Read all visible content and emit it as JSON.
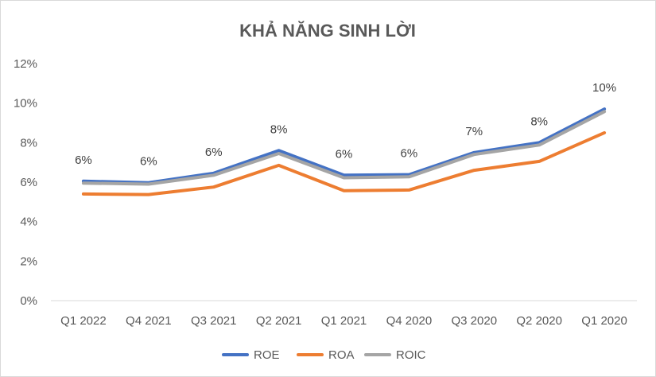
{
  "chart_data": {
    "type": "line",
    "title": "KHẢ NĂNG SINH LỜI",
    "categories": [
      "Q1 2022",
      "Q4 2021",
      "Q3 2021",
      "Q2 2021",
      "Q1 2021",
      "Q4 2020",
      "Q3 2020",
      "Q2 2020",
      "Q1 2020"
    ],
    "series": [
      {
        "name": "ROE",
        "color": "#4472C4",
        "values": [
          6.05,
          5.97,
          6.45,
          7.6,
          6.35,
          6.38,
          7.5,
          8.0,
          9.7
        ]
      },
      {
        "name": "ROA",
        "color": "#ED7D31",
        "values": [
          5.4,
          5.37,
          5.75,
          6.85,
          5.57,
          5.6,
          6.6,
          7.05,
          8.5
        ]
      },
      {
        "name": "ROIC",
        "color": "#A5A5A5",
        "values": [
          5.95,
          5.9,
          6.35,
          7.45,
          6.22,
          6.27,
          7.4,
          7.88,
          9.57
        ]
      }
    ],
    "data_labels": [
      "6%",
      "6%",
      "6%",
      "8%",
      "6%",
      "6%",
      "7%",
      "8%",
      "10%"
    ],
    "y_ticks": [
      "0%",
      "2%",
      "4%",
      "6%",
      "8%",
      "10%",
      "12%"
    ],
    "ylim": [
      0,
      12
    ],
    "legend_position": "bottom",
    "grid": false
  }
}
